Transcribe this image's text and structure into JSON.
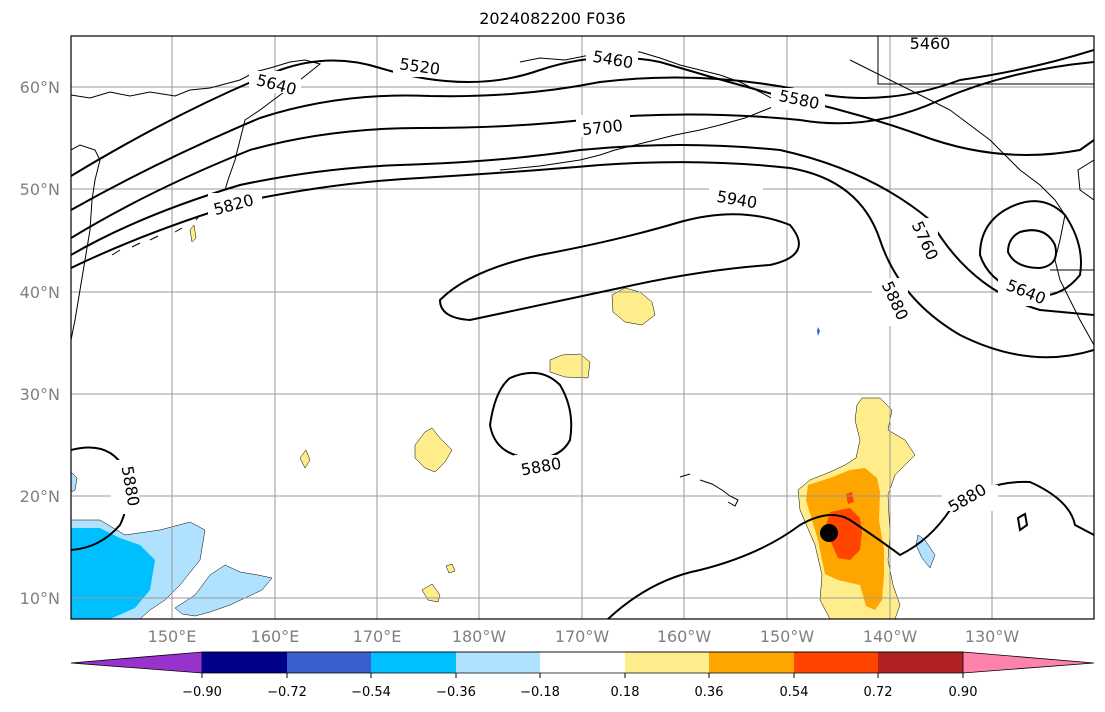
{
  "title": "2024082200 F036",
  "map": {
    "projection": "PlateCarree",
    "lon_range": [
      140,
      255
    ],
    "lat_range": [
      8,
      65
    ],
    "lat_ticks": [
      "10°N",
      "20°N",
      "30°N",
      "40°N",
      "50°N",
      "60°N"
    ],
    "lon_ticks": [
      "150°E",
      "160°E",
      "170°E",
      "180°W",
      "170°W",
      "160°W",
      "150°W",
      "140°W",
      "130°W"
    ],
    "contour_labels": [
      "5460",
      "5520",
      "5460",
      "5460",
      "5640",
      "5580",
      "5700",
      "5820",
      "5940",
      "5760",
      "5880",
      "5640",
      "5880",
      "5880",
      "5880"
    ],
    "marker": {
      "lon": 214.5,
      "lat": 16.4,
      "color": "#000000"
    }
  },
  "colorbar": {
    "colors": [
      "#9932cc",
      "#00008b",
      "#3a5fcd",
      "#00bfff",
      "#b0e2ff",
      "#ffffff",
      "#ffec8b",
      "#ffa500",
      "#ff4500",
      "#b22222",
      "#ff82ab"
    ],
    "tick_labels": [
      "−0.90",
      "−0.72",
      "−0.54",
      "−0.36",
      "−0.18",
      "0.18",
      "0.36",
      "0.54",
      "0.72",
      "0.90"
    ],
    "extend": "both"
  }
}
